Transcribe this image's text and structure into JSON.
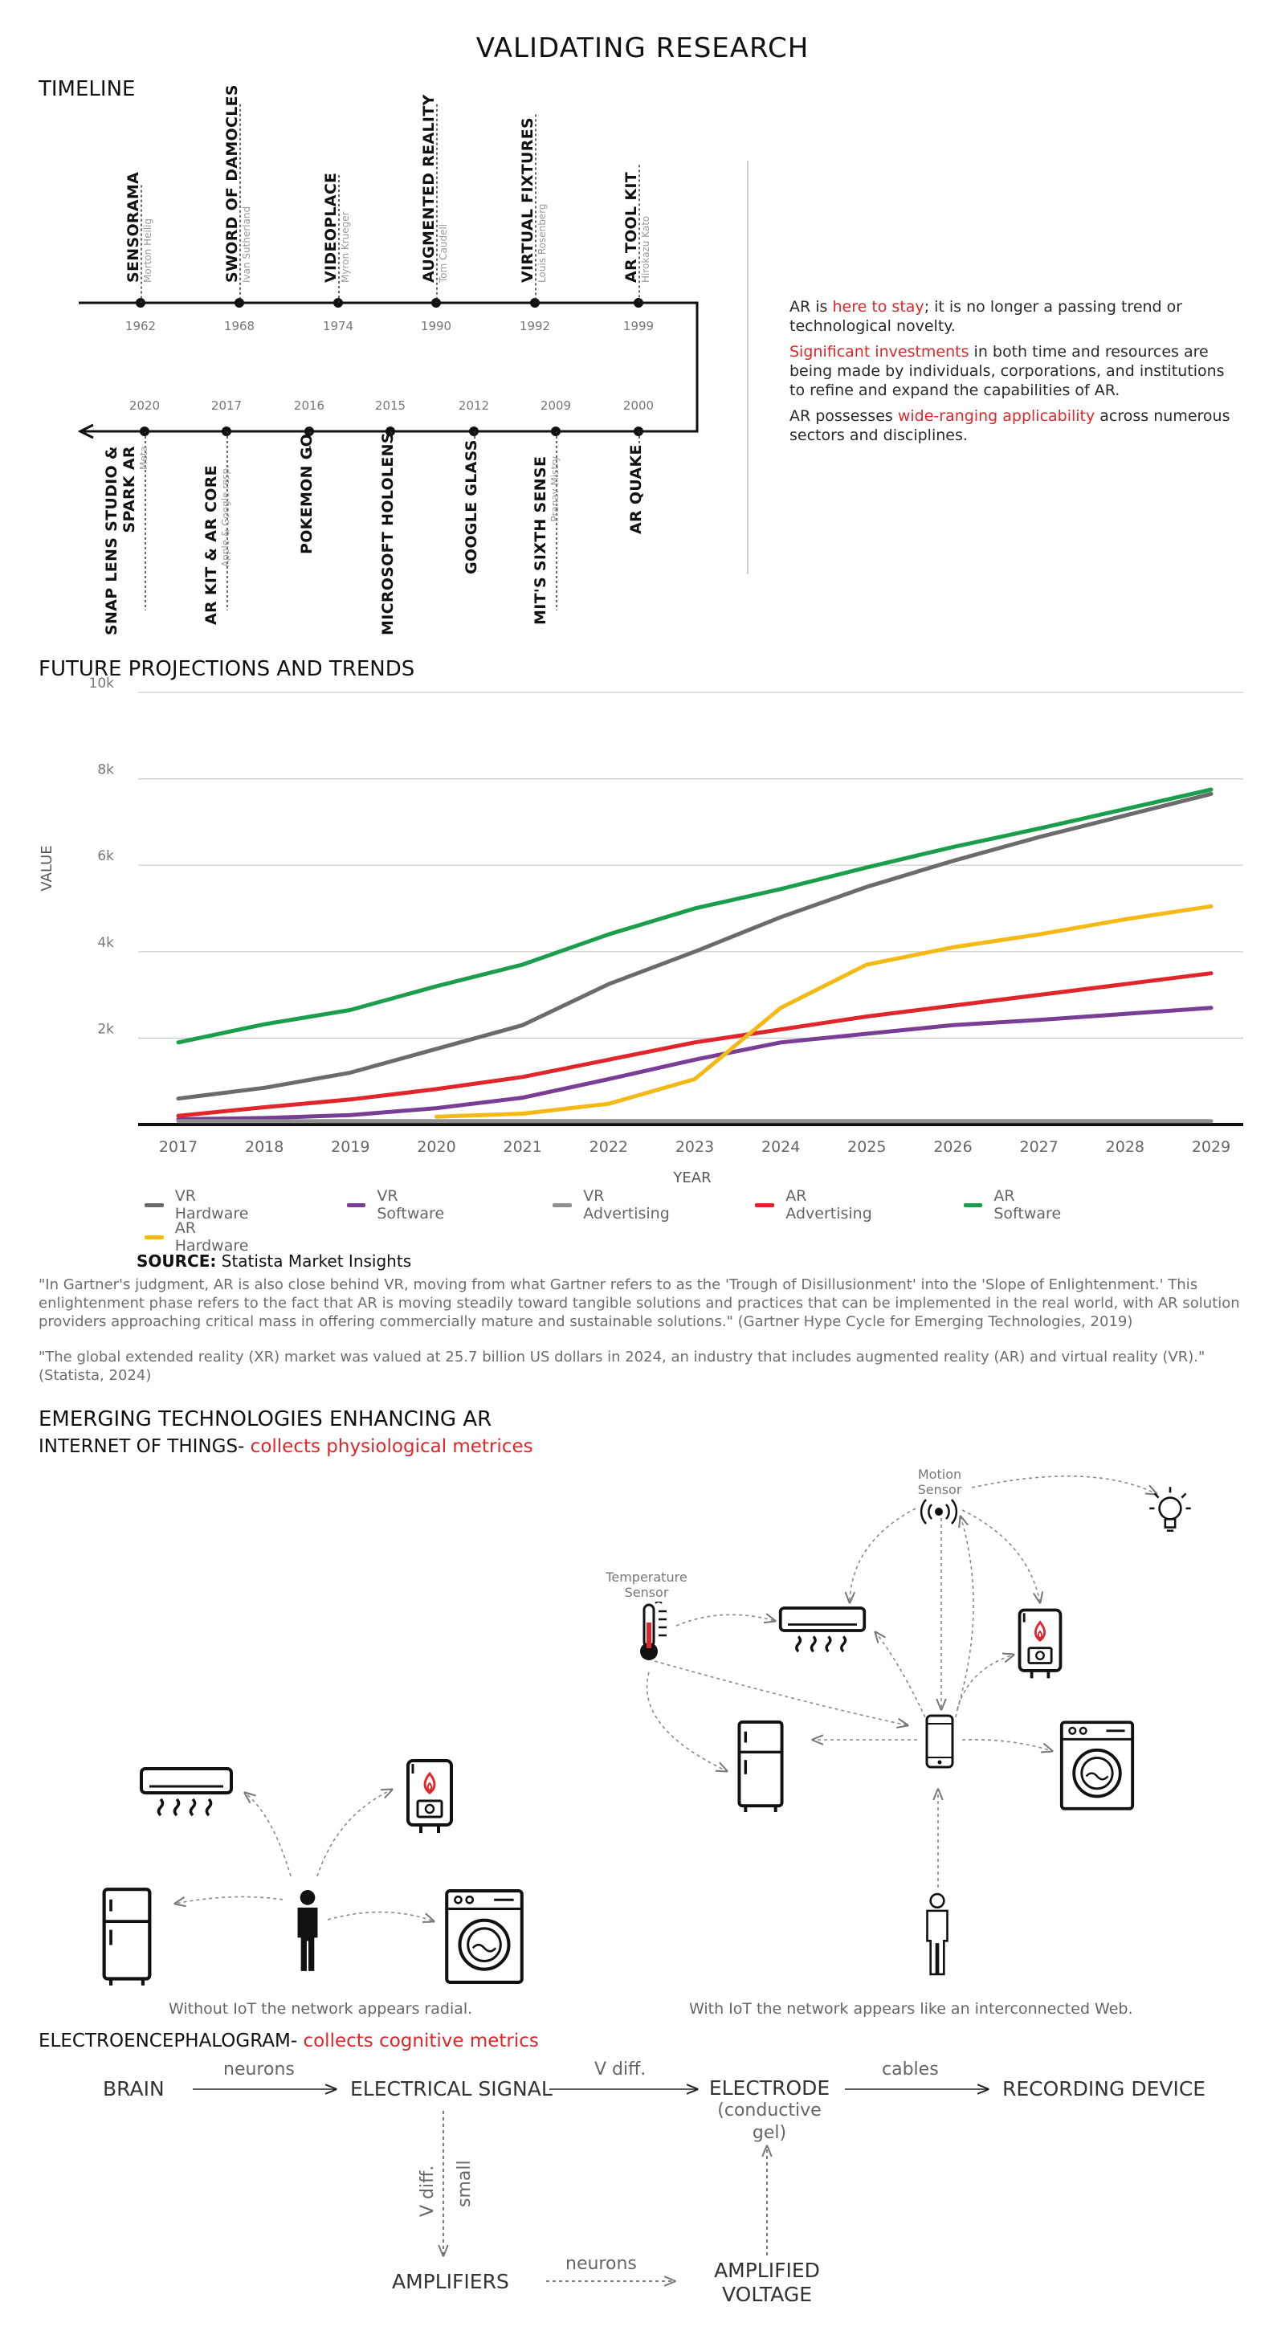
{
  "page_title": "VALIDATING RESEARCH",
  "timeline": {
    "heading": "TIMELINE",
    "top_events": [
      {
        "year": "1962",
        "title": "SENSORAMA",
        "person": "Morton Heilig"
      },
      {
        "year": "1968",
        "title": "SWORD OF DAMOCLES",
        "person": "Ivan Sutherland"
      },
      {
        "year": "1974",
        "title": "VIDEOPLACE",
        "person": "Myron Krueger"
      },
      {
        "year": "1990",
        "title": "AUGMENTED REALITY",
        "person": "Tom Caudell"
      },
      {
        "year": "1992",
        "title": "VIRTUAL FIXTURES",
        "person": "Louis Rosenberg"
      },
      {
        "year": "1999",
        "title": "AR TOOL KIT",
        "person": "Hirokazu Kato"
      }
    ],
    "bottom_events": [
      {
        "year": "2020",
        "title": "SNAP LENS STUDIO &",
        "title2": "SPARK AR",
        "person": "Meta"
      },
      {
        "year": "2017",
        "title": "AR KIT  & AR CORE",
        "person": "Apple & Google resp."
      },
      {
        "year": "2016",
        "title": "POKEMON GO",
        "person": ""
      },
      {
        "year": "2015",
        "title": "MICROSOFT HOLOLENS",
        "person": ""
      },
      {
        "year": "2012",
        "title": "GOOGLE GLASS",
        "person": ""
      },
      {
        "year": "2009",
        "title": "MIT'S SIXTH SENSE",
        "person": "Pranav Mistry"
      },
      {
        "year": "2000",
        "title": "AR QUAKE",
        "person": ""
      }
    ],
    "notes": {
      "p1_a": "AR is ",
      "p1_hl": "here to stay",
      "p1_b": "; it is no longer a passing trend or technological novelty.",
      "p2_hl": "Significant investments",
      "p2_b": " in both time and resources are being made by individuals, corporations, and institutions to refine and expand the capabilities of AR.",
      "p3_a": "AR possesses ",
      "p3_hl": "wide-ranging applicability",
      "p3_b": " across numerous sectors and disciplines."
    }
  },
  "projections": {
    "heading": "FUTURE PROJECTIONS AND TRENDS",
    "source_label": "SOURCE:",
    "source_value": "Statista Market Insights",
    "quote1": "\"In Gartner's judgment, AR is also close behind VR, moving from what Gartner refers to as the 'Trough of Disillusionment' into the 'Slope of Enlightenment.' This enlightenment phase refers to the fact that AR is moving steadily toward tangible solutions and practices that can be implemented in the real world, with AR solution providers approaching critical mass in offering commercially mature and sustainable solutions.\" (Gartner Hype Cycle for Emerging Technologies, 2019)",
    "quote2": "\"The global extended reality (XR) market was valued at 25.7 billion US dollars in 2024, an industry that includes augmented reality (AR) and virtual reality (VR).\" (Statista, 2024)"
  },
  "chart_data": {
    "type": "line",
    "title": "",
    "xlabel": "YEAR",
    "ylabel": "VALUE",
    "x": [
      2017,
      2018,
      2019,
      2020,
      2021,
      2022,
      2023,
      2024,
      2025,
      2026,
      2027,
      2028,
      2029
    ],
    "ylim": [
      0,
      10000
    ],
    "yticks": [
      2000,
      4000,
      6000,
      8000,
      10000
    ],
    "ytick_labels": [
      "2k",
      "4k",
      "6k",
      "8k",
      "10k"
    ],
    "grid": true,
    "legend_position": "bottom",
    "series": [
      {
        "name": "VR Hardware",
        "color": "#6b6b6b",
        "values": [
          600,
          850,
          1200,
          1750,
          2300,
          3250,
          4000,
          4800,
          5500,
          6100,
          6650,
          7150,
          7650
        ]
      },
      {
        "name": "VR Software",
        "color": "#7a3d96",
        "values": [
          120,
          150,
          220,
          380,
          620,
          1050,
          1500,
          1900,
          2100,
          2300,
          2420,
          2560,
          2700
        ]
      },
      {
        "name": "VR Advertising",
        "color": "#8f8f8f",
        "values": [
          80,
          80,
          80,
          80,
          80,
          80,
          80,
          80,
          80,
          80,
          80,
          80,
          80
        ]
      },
      {
        "name": "AR Advertising",
        "color": "#e0262b",
        "values": [
          200,
          400,
          580,
          820,
          1100,
          1500,
          1900,
          2200,
          2500,
          2750,
          3000,
          3250,
          3500
        ]
      },
      {
        "name": "AR Software",
        "color": "#1a9e4b",
        "values": [
          1900,
          2320,
          2650,
          3200,
          3700,
          4400,
          5000,
          5450,
          5950,
          6420,
          6850,
          7300,
          7750
        ]
      },
      {
        "name": "AR Hardware",
        "color": "#f5b915",
        "values": [
          null,
          null,
          null,
          180,
          250,
          480,
          1050,
          2700,
          3700,
          4100,
          4400,
          4750,
          5050
        ]
      }
    ]
  },
  "emerging": {
    "heading": "EMERGING TECHNOLOGIES ENHANCING AR",
    "iot_label": "INTERNET OF THINGS-",
    "iot_hl": " collects physiological metrices",
    "motion_sensor_1": "Motion",
    "motion_sensor_2": "Sensor",
    "temperature_sensor_1": "Temperature",
    "temperature_sensor_2": "Sensor",
    "caption_radial": "Without IoT the network appears radial.",
    "caption_web": "With IoT the network appears like an interconnected Web.",
    "eeg_label": "ELECTROENCEPHALOGRAM-",
    "eeg_hl": " collects cognitive metrics",
    "flow": {
      "brain": "BRAIN",
      "neurons": "neurons",
      "electrical_signal": "ELECTRICAL SIGNAL",
      "v_diff": "V diff.",
      "electrode": "ELECTRODE",
      "conductive_1": "(conductive",
      "conductive_2": "gel)",
      "cables": "cables",
      "recording_device": "RECORDING DEVICE",
      "v_diff_small_1": "V diff.",
      "v_diff_small_2": "small",
      "amplifiers": "AMPLIFIERS",
      "neurons2": "neurons",
      "amplified_1": "AMPLIFIED",
      "amplified_2": "VOLTAGE"
    }
  }
}
